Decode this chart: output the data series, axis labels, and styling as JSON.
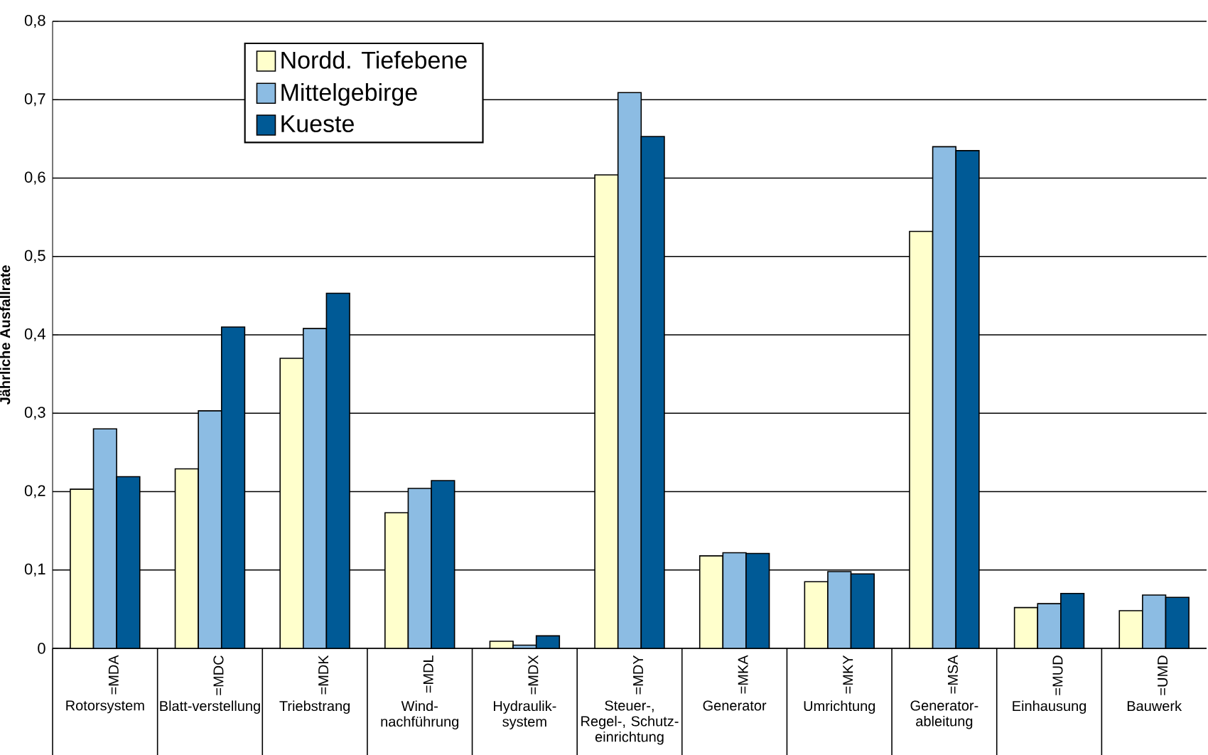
{
  "chart_data": {
    "type": "bar",
    "ylabel": "Jährliche Ausfallrate",
    "categories": [
      "Rotorsystem",
      "Blatt-verstellung",
      "Triebstrang",
      "Wind-nachführung",
      "Hydraulik-system",
      "Steuer-, Regel-, Schutz-einrichtung",
      "Generator",
      "Umrichtung",
      "Generator-ableitung",
      "Einhausung",
      "Bauwerk"
    ],
    "annotations": [
      "=MDA",
      "=MDC",
      "=MDK",
      "=MDL",
      "=MDX",
      "=MDY",
      "=MKA",
      "=MKY",
      "=MSA",
      "=MUD",
      "=UMD"
    ],
    "series": [
      {
        "name": "Nordd. Tiefebene",
        "color": "#ffffcc",
        "values": [
          0.203,
          0.229,
          0.37,
          0.173,
          0.009,
          0.604,
          0.118,
          0.085,
          0.532,
          0.052,
          0.048
        ]
      },
      {
        "name": "Mittelgebirge",
        "color": "#8cbce3",
        "values": [
          0.28,
          0.303,
          0.408,
          0.204,
          0.004,
          0.709,
          0.122,
          0.098,
          0.64,
          0.057,
          0.068
        ]
      },
      {
        "name": "Kueste",
        "color": "#005a96",
        "values": [
          0.219,
          0.41,
          0.453,
          0.214,
          0.016,
          0.653,
          0.121,
          0.095,
          0.635,
          0.07,
          0.065
        ]
      }
    ],
    "ylim": [
      0,
      0.8
    ],
    "yticks": [
      0,
      {
        "value": 0.1,
        "label": "0,1"
      },
      {
        "value": 0.2,
        "label": "0,2"
      },
      {
        "value": 0.3,
        "label": "0,3"
      },
      {
        "value": 0.4,
        "label": "0,4"
      },
      {
        "value": 0.5,
        "label": "0,5"
      },
      {
        "value": 0.6,
        "label": "0,6"
      },
      {
        "value": 0.7,
        "label": "0,7"
      },
      {
        "value": 0.8,
        "label": "0,8"
      }
    ],
    "grid": "y",
    "legend": "top left"
  }
}
